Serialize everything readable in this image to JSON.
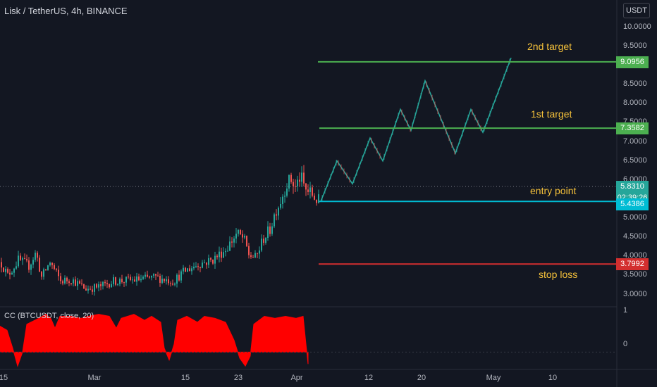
{
  "header": {
    "title": "Lisk / TetherUS, 4h, BINANCE",
    "currency": "USDT"
  },
  "indicator": {
    "title": "CC (BTCUSDT, close, 20)",
    "ticks": [
      "1",
      "0"
    ]
  },
  "price_axis": {
    "ticks": [
      "10.0000",
      "9.5000",
      "9.0000",
      "8.5000",
      "8.0000",
      "7.5000",
      "7.0000",
      "6.5000",
      "6.0000",
      "5.5000",
      "5.0000",
      "4.5000",
      "4.0000",
      "3.5000",
      "3.0000"
    ]
  },
  "time_axis": {
    "ticks": [
      "15",
      "Mar",
      "15",
      "23",
      "Apr",
      "12",
      "20",
      "May",
      "10"
    ]
  },
  "price_labels": {
    "second_target": "9.0956",
    "first_target": "7.3582",
    "current_price": "5.8310",
    "countdown": "02:39:26",
    "entry": "5.4386",
    "stop_loss": "3.7992"
  },
  "annotations": {
    "second_target": "2nd target",
    "first_target": "1st target",
    "entry": "entry point",
    "stop_loss": "stop loss"
  },
  "colors": {
    "background": "#131722",
    "up": "#26a69a",
    "down": "#ef5350",
    "target_line": "#4caf50",
    "entry_line": "#00bcd4",
    "stop_line": "#d32f2f",
    "annotation": "#f5c13a",
    "indicator_fill": "#ff0000"
  },
  "chart_data": {
    "type": "candlestick",
    "ylim": [
      2.9,
      10.2
    ],
    "projection": [
      [
        5.44,
        6.5,
        5.9,
        7.1,
        6.5,
        7.85,
        7.3,
        8.6,
        6.7,
        7.85,
        7.25,
        9.2
      ]
    ],
    "levels": {
      "second_target": 9.0956,
      "first_target": 7.3582,
      "entry": 5.4386,
      "stop_loss": 3.7992,
      "current": 5.831
    },
    "indicator_range": [
      -0.4,
      1.05
    ]
  }
}
